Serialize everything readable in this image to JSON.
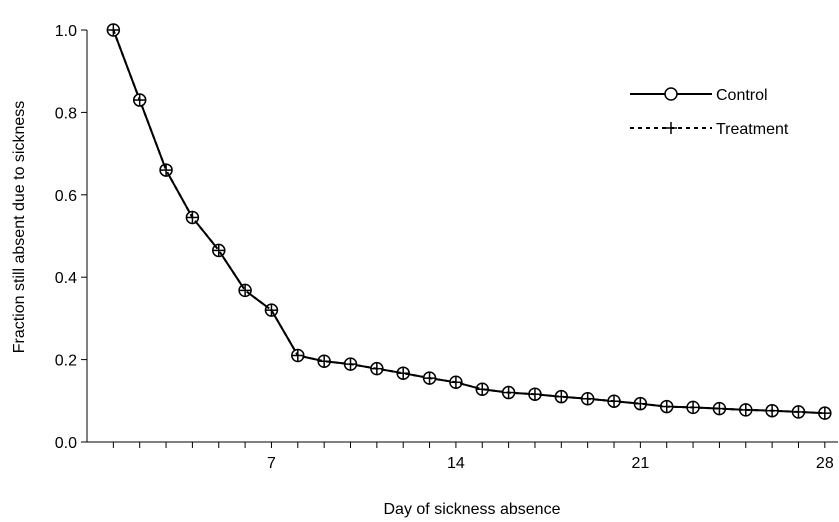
{
  "chart_data": {
    "type": "line",
    "title": "",
    "xlabel": "Day of sickness absence",
    "ylabel": "Fraction still absent due to sickness",
    "xlim": [
      0,
      28.5
    ],
    "ylim": [
      0,
      1.0
    ],
    "x_ticks": [
      7,
      14,
      21,
      28
    ],
    "x_tick_labels": [
      "7",
      "14",
      "21",
      "28"
    ],
    "x_minor_ticks": [
      1,
      2,
      3,
      4,
      5,
      6,
      7,
      8,
      9,
      10,
      11,
      12,
      13,
      14,
      15,
      16,
      17,
      18,
      19,
      20,
      21,
      22,
      23,
      24,
      25,
      26,
      27,
      28
    ],
    "y_ticks": [
      0,
      0.2,
      0.4,
      0.6,
      0.8,
      1.0
    ],
    "y_tick_labels": [
      "0.0",
      "0.2",
      "0.4",
      "0.6",
      "0.8",
      "1.0"
    ],
    "grid": false,
    "legend_position": "top-right",
    "x": [
      1,
      2,
      3,
      4,
      5,
      6,
      7,
      8,
      9,
      10,
      11,
      12,
      13,
      14,
      15,
      16,
      17,
      18,
      19,
      20,
      21,
      22,
      23,
      24,
      25,
      26,
      27,
      28
    ],
    "series": [
      {
        "name": "Control",
        "marker": "circle",
        "line_style": "solid",
        "color": "#000000",
        "values": [
          1.0,
          0.83,
          0.66,
          0.545,
          0.465,
          0.368,
          0.32,
          0.21,
          0.196,
          0.189,
          0.178,
          0.167,
          0.155,
          0.145,
          0.128,
          0.12,
          0.116,
          0.11,
          0.105,
          0.099,
          0.093,
          0.086,
          0.084,
          0.081,
          0.078,
          0.076,
          0.073,
          0.07
        ]
      },
      {
        "name": "Treatment",
        "marker": "plus",
        "line_style": "dashed",
        "color": "#000000",
        "values": [
          1.0,
          0.83,
          0.66,
          0.545,
          0.465,
          0.368,
          0.32,
          0.21,
          0.196,
          0.189,
          0.178,
          0.167,
          0.155,
          0.145,
          0.128,
          0.12,
          0.116,
          0.11,
          0.105,
          0.099,
          0.093,
          0.086,
          0.084,
          0.081,
          0.078,
          0.076,
          0.073,
          0.07
        ]
      }
    ]
  }
}
